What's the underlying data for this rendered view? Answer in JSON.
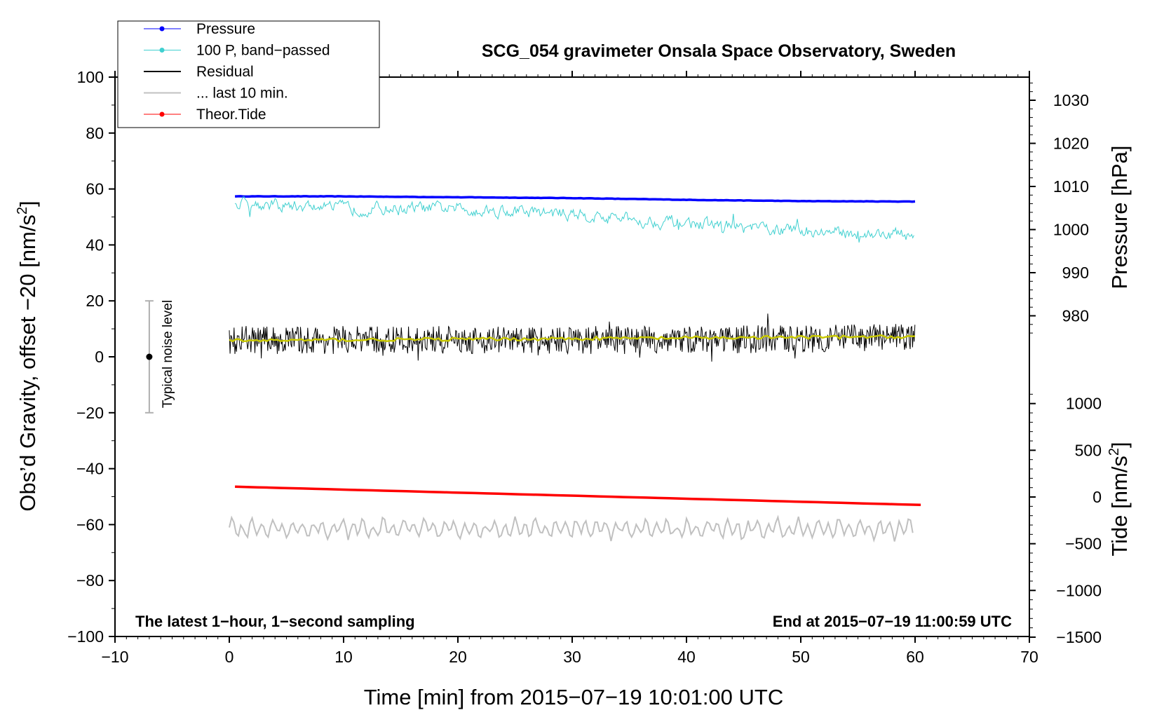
{
  "chart_data": {
    "type": "line",
    "title": "SCG_054 gravimeter Onsala Space Observatory, Sweden",
    "xlabel": "Time [min] from 2015−07−19 10:01:00 UTC",
    "ylabel_prefix": "Obs’d Gravity, offset −20 [nm/s",
    "ylabel_sup": "2",
    "ylabel_suffix": "]",
    "y2label": "Pressure [hPa]",
    "y3label_prefix": "Tide [nm/s",
    "y3label_sup": "2",
    "y3label_suffix": "]",
    "xlim": [
      -10,
      70
    ],
    "ylim": [
      -100,
      100
    ],
    "x_ticks": [
      "−10",
      "0",
      "10",
      "20",
      "30",
      "40",
      "50",
      "60",
      "70"
    ],
    "y_ticks": [
      "−100",
      "−80",
      "−60",
      "−40",
      "−20",
      "0",
      "20",
      "40",
      "60",
      "80",
      "100"
    ],
    "pressure_ticks": [
      "980",
      "990",
      "1000",
      "1010",
      "1020",
      "1030"
    ],
    "tide_ticks": [
      "−1500",
      "−1000",
      "−500",
      "0",
      "500",
      "1000"
    ],
    "grid": false,
    "legend_position": "top-left",
    "annotation_left": "The latest 1−hour, 1−second sampling",
    "annotation_right": "End at 2015−07−19 11:00:59 UTC",
    "noise_label": "Typical noise level",
    "noise_bar": {
      "x": -7,
      "center": 0,
      "low": -20,
      "high": 20
    },
    "series": [
      {
        "name": "Pressure",
        "color": "#0000ff",
        "axis": "pressure_hPa",
        "x": [
          0.5,
          10,
          20,
          30,
          40,
          50,
          60
        ],
        "values": [
          1007.7,
          1007.7,
          1007.5,
          1007.3,
          1006.9,
          1006.6,
          1006.5
        ]
      },
      {
        "name": "100 P, band−passed",
        "color": "#40d0d0",
        "axis": "gravity",
        "x": [
          0.5,
          5,
          10,
          15,
          20,
          25,
          30,
          35,
          40,
          45,
          50,
          55,
          60
        ],
        "values": [
          55,
          54,
          53,
          53,
          53,
          52,
          51,
          49,
          48,
          46,
          45,
          44,
          43.5
        ],
        "noise_amplitude": 4
      },
      {
        "name": "Residual",
        "color": "#000000",
        "axis": "gravity",
        "x": [
          0,
          10,
          20,
          30,
          40,
          50,
          60
        ],
        "values": [
          6,
          6,
          6,
          6,
          6,
          6.5,
          7
        ],
        "noise_amplitude": 5
      },
      {
        "name": "... last 10 min.",
        "color": "#c0c0c0",
        "axis": "gravity",
        "x": [
          0,
          60
        ],
        "values": [
          -61.5,
          -61.5
        ],
        "noise_amplitude": 4
      },
      {
        "name": "Theor.Tide",
        "color": "#ff0000",
        "axis": "tide_nm_s2",
        "x": [
          0.5,
          60.5
        ],
        "values": [
          110,
          -85
        ]
      }
    ],
    "smoothed_residual": {
      "color": "#c8c800",
      "x": [
        0,
        60
      ],
      "values": [
        5.8,
        7.2
      ]
    }
  }
}
